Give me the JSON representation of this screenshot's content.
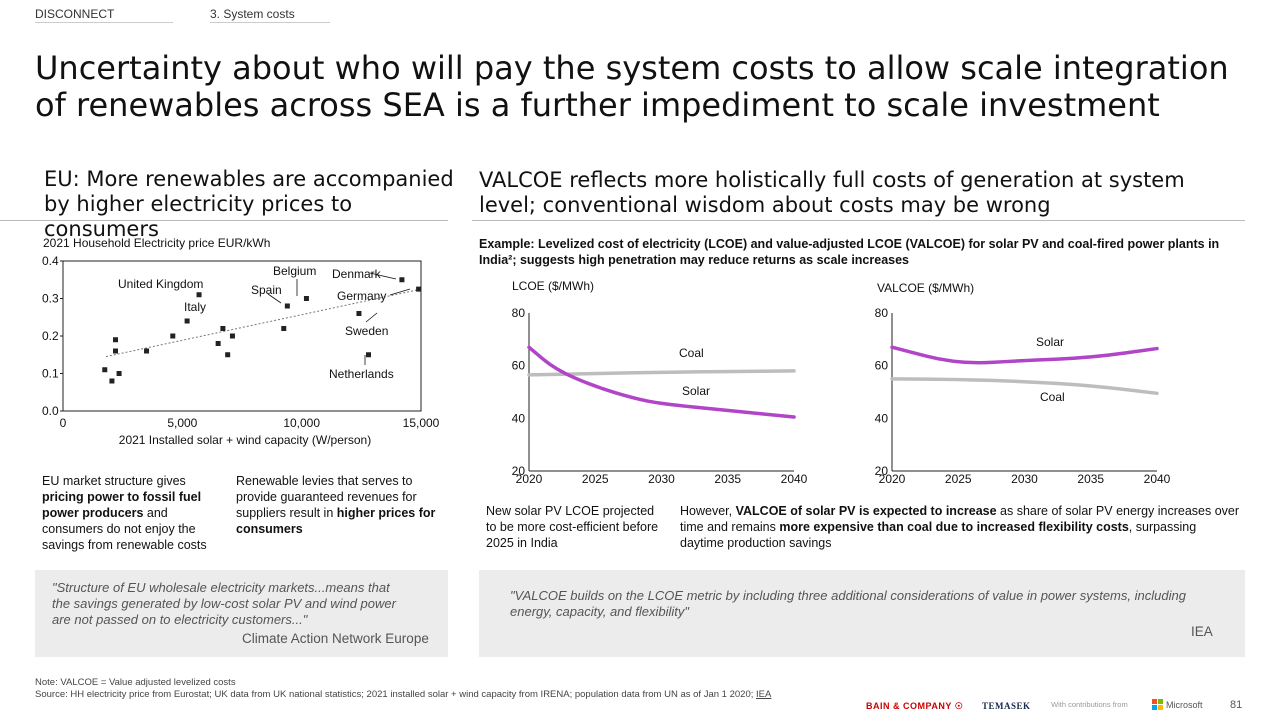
{
  "breadcrumb": {
    "section": "DISCONNECT",
    "subsection": "3. System costs"
  },
  "title": "Uncertainty about who will pay the system costs to allow scale integration of renewables across SEA is a further impediment to scale investment",
  "left": {
    "heading": "EU: More renewables are accompanied by higher electricity prices to consumers",
    "note1_pre": "EU market structure gives ",
    "note1_bold": "pricing power to fossil fuel power producers",
    "note1_post": " and consumers do not enjoy the savings from renewable costs",
    "note2_pre": "Renewable levies that serves to provide guaranteed revenues for suppliers result in ",
    "note2_bold": "higher prices for consumers",
    "quote": "\"Structure of EU wholesale electricity markets...means that the savings generated by low-cost solar PV and wind power are not passed on to electricity customers...\"",
    "quote_source": "Climate Action Network Europe"
  },
  "right": {
    "heading": "VALCOE reflects more holistically full costs of generation at system level; conventional wisdom about costs may be wrong",
    "example_text": "Example: Levelized cost of electricity (LCOE) and value-adjusted LCOE (VALCOE) for solar PV and coal-fired power plants in India²; suggests high penetration may reduce returns as scale increases",
    "lcoe_note": "New solar PV LCOE projected to be more cost-efficient before 2025 in India",
    "valcoe_note_1": "However, ",
    "valcoe_note_b1": "VALCOE of solar PV is expected to increase",
    "valcoe_note_2": " as share of solar PV energy increases over time and remains ",
    "valcoe_note_b2": "more expensive than coal due to increased flexibility costs",
    "valcoe_note_3": ", surpassing daytime production savings",
    "quote": "\"VALCOE builds on the LCOE metric by including three additional considerations of value in power systems, including energy, capacity, and flexibility\"",
    "quote_source": "IEA"
  },
  "footer": {
    "note": "Note: VALCOE = Value adjusted levelized costs",
    "source": "Source: HH electricity price from Eurostat; UK data from UK national statistics; 2021 installed solar + wind capacity from IRENA; population data from UN as of Jan 1 2020; ",
    "source_link": "IEA",
    "logo_bain": "BAIN & COMPANY",
    "logo_temasek": "TEMASEK",
    "contrib": "With contributions from",
    "logo_ms": "Microsoft",
    "page": "81"
  },
  "colors": {
    "solar": "#b145c8",
    "coal": "#bdbdbd",
    "trend": "#777777"
  },
  "chart_data": [
    {
      "type": "scatter",
      "title": "2021 Household Electricity price EUR/kWh",
      "xlabel": "2021 Installed solar + wind capacity (W/person)",
      "ylabel": "",
      "xlim": [
        0,
        15000
      ],
      "ylim": [
        0,
        0.4
      ],
      "xticks": [
        {
          "v": 0,
          "l": "0"
        },
        {
          "v": 5000,
          "l": "5,000"
        },
        {
          "v": 10000,
          "l": "10,000"
        },
        {
          "v": 15000,
          "l": "15,000"
        }
      ],
      "yticks": [
        {
          "v": 0,
          "l": "0.0"
        },
        {
          "v": 0.1,
          "l": "0.1"
        },
        {
          "v": 0.2,
          "l": "0.2"
        },
        {
          "v": 0.3,
          "l": "0.3"
        },
        {
          "v": 0.4,
          "l": "0.4"
        }
      ],
      "trendline": {
        "x": [
          1800,
          15000
        ],
        "y": [
          0.145,
          0.325
        ]
      },
      "points": [
        {
          "x": 1750,
          "y": 0.11
        },
        {
          "x": 2050,
          "y": 0.08
        },
        {
          "x": 2200,
          "y": 0.16
        },
        {
          "x": 2200,
          "y": 0.19
        },
        {
          "x": 2350,
          "y": 0.1
        },
        {
          "x": 3500,
          "y": 0.16
        },
        {
          "x": 4600,
          "y": 0.2
        },
        {
          "x": 5200,
          "y": 0.24
        },
        {
          "x": 5700,
          "y": 0.31
        },
        {
          "x": 6500,
          "y": 0.18
        },
        {
          "x": 6700,
          "y": 0.22
        },
        {
          "x": 6900,
          "y": 0.15
        },
        {
          "x": 7100,
          "y": 0.2
        },
        {
          "x": 9250,
          "y": 0.22
        },
        {
          "x": 9400,
          "y": 0.28
        },
        {
          "x": 10200,
          "y": 0.3
        },
        {
          "x": 12400,
          "y": 0.26
        },
        {
          "x": 12800,
          "y": 0.15
        },
        {
          "x": 14200,
          "y": 0.35
        },
        {
          "x": 14900,
          "y": 0.325
        }
      ],
      "annotations": [
        "United Kingdom",
        "Italy",
        "Spain",
        "Belgium",
        "Denmark",
        "Germany",
        "Sweden",
        "Netherlands"
      ]
    },
    {
      "type": "line",
      "title": "LCOE ($/MWh)",
      "xlim": [
        2020,
        2040
      ],
      "ylim": [
        20,
        80
      ],
      "xticks": [
        2020,
        2025,
        2030,
        2035,
        2040
      ],
      "yticks": [
        20,
        40,
        60,
        80
      ],
      "series": [
        {
          "name": "Coal",
          "x": [
            2020,
            2025,
            2030,
            2035,
            2040
          ],
          "y": [
            56.5,
            57,
            57.5,
            57.8,
            58
          ]
        },
        {
          "name": "Solar",
          "x": [
            2020,
            2022,
            2025,
            2028,
            2030,
            2035,
            2040
          ],
          "y": [
            67,
            58.5,
            52,
            47.5,
            45.5,
            43,
            40.5
          ]
        }
      ]
    },
    {
      "type": "line",
      "title": "VALCOE ($/MWh)",
      "xlim": [
        2020,
        2040
      ],
      "ylim": [
        20,
        80
      ],
      "xticks": [
        2020,
        2025,
        2030,
        2035,
        2040
      ],
      "yticks": [
        20,
        40,
        60,
        80
      ],
      "series": [
        {
          "name": "Solar",
          "x": [
            2020,
            2025,
            2030,
            2035,
            2040
          ],
          "y": [
            67,
            60.5,
            62,
            63,
            66.5
          ]
        },
        {
          "name": "Coal",
          "x": [
            2020,
            2025,
            2030,
            2035,
            2040
          ],
          "y": [
            55,
            54.8,
            54,
            52.5,
            49.5
          ]
        }
      ]
    }
  ]
}
